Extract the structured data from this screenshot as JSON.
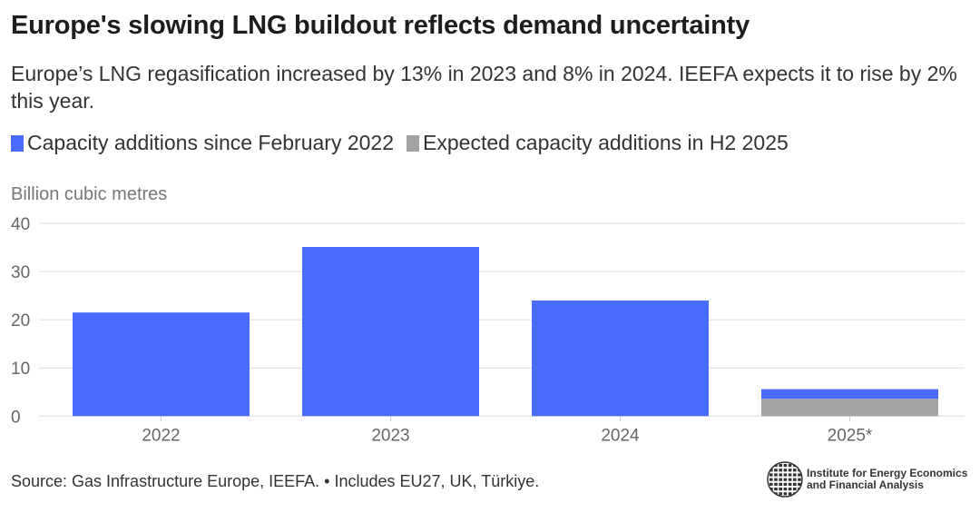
{
  "title": "Europe's slowing LNG buildout reflects demand uncertainty",
  "subtitle": "Europe’s LNG regasification increased by 13% in 2023 and 8% in 2024. IEEFA expects it to rise by 2% this year.",
  "source": "Source: Gas Infrastructure Europe, IEEFA. • Includes EU27, UK, Türkiye.",
  "logo": {
    "line1": "Institute for Energy Economics",
    "line2": "and Financial Analysis"
  },
  "chart_data": {
    "type": "bar",
    "stacked": true,
    "title": "Europe's slowing LNG buildout reflects demand uncertainty",
    "ylabel": "Billion cubic metres",
    "xlabel": "",
    "ylim": [
      0,
      40
    ],
    "yticks": [
      0,
      10,
      20,
      30,
      40
    ],
    "grid": true,
    "legend_placement": "top-left",
    "categories": [
      "2022",
      "2023",
      "2024",
      "2025*"
    ],
    "series": [
      {
        "name": "Expected capacity additions in H2 2025",
        "color": "#a3a3a3",
        "values": [
          0,
          0,
          0,
          3.6
        ]
      },
      {
        "name": "Capacity additions since February 2022",
        "color": "#496cff",
        "values": [
          21.5,
          35.1,
          24.0,
          2.0
        ]
      }
    ],
    "legend_order": [
      1,
      0
    ]
  }
}
